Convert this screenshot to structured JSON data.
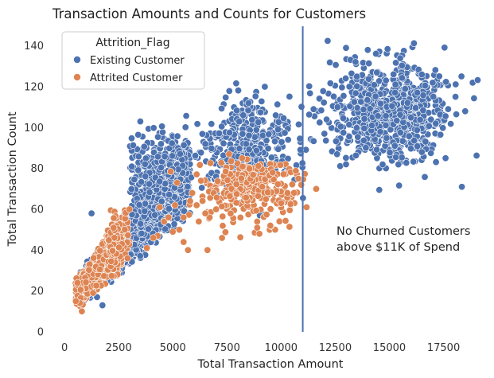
{
  "chart_data": {
    "type": "scatter",
    "title": "Transaction Amounts and Counts for Customers",
    "xlabel": "Total Transaction Amount",
    "ylabel": "Total Transaction Count",
    "xlim": [
      -500,
      19500
    ],
    "ylim": [
      0,
      150
    ],
    "xticks": [
      0,
      2500,
      5000,
      7500,
      10000,
      12500,
      15000,
      17500
    ],
    "yticks": [
      0,
      20,
      40,
      60,
      80,
      100,
      120,
      140
    ],
    "grid": false,
    "legend": {
      "title": "Attrition_Flag",
      "placement": "top-left"
    },
    "vline": {
      "x": 11000,
      "color": "#4c72b0"
    },
    "annotation": {
      "lines": [
        "No Churned Customers",
        "above $11K of Spend"
      ],
      "x": 12500,
      "y": 40
    },
    "series": [
      {
        "name": "Existing Customer",
        "color": "#4c72b0",
        "clusters": [
          {
            "kind": "band",
            "x_range": [
              700,
              5800
            ],
            "y_low_at_start": 12,
            "y_low_at_end": 55,
            "y_high_at_start": 30,
            "y_high_at_end": 100,
            "n": 1500
          },
          {
            "kind": "band",
            "x_range": [
              3000,
              5600
            ],
            "y_low_at_start": 50,
            "y_low_at_end": 62,
            "y_high_at_start": 100,
            "y_high_at_end": 106,
            "n": 250
          },
          {
            "kind": "ellipse",
            "center": [
              8500,
              90
            ],
            "spread": [
              1000,
              11
            ],
            "n": 420
          },
          {
            "kind": "ellipse",
            "center": [
              15000,
              108
            ],
            "spread": [
              1400,
              12
            ],
            "n": 750
          }
        ],
        "points": [
          [
            1250,
            58
          ],
          [
            3500,
            103
          ],
          [
            9250,
            120
          ],
          [
            13000,
            139
          ],
          [
            14000,
            138
          ],
          [
            15500,
            134
          ],
          [
            18500,
            108
          ],
          [
            11500,
            109
          ],
          [
            16500,
            88
          ],
          [
            13000,
            82
          ],
          [
            16500,
            126
          ],
          [
            17000,
            122
          ],
          [
            7000,
            76
          ],
          [
            6500,
            92
          ],
          [
            1500,
            17
          ],
          [
            1750,
            13
          ],
          [
            9750,
            106
          ],
          [
            8500,
            112
          ],
          [
            13500,
            125
          ],
          [
            12000,
            97
          ]
        ]
      },
      {
        "name": "Attrited Customer",
        "color": "#dd8452",
        "clusters": [
          {
            "kind": "band",
            "x_range": [
              500,
              2700
            ],
            "y_low_at_start": 10,
            "y_low_at_end": 28,
            "y_high_at_start": 26,
            "y_high_at_end": 60,
            "n": 500
          },
          {
            "kind": "band",
            "x_range": [
              2000,
              3000
            ],
            "y_low_at_start": 30,
            "y_low_at_end": 35,
            "y_high_at_start": 60,
            "y_high_at_end": 65,
            "n": 80
          },
          {
            "kind": "ellipse",
            "center": [
              8500,
              70
            ],
            "spread": [
              1050,
              8
            ],
            "n": 280
          }
        ],
        "points": [
          [
            4300,
            47
          ],
          [
            4600,
            54
          ],
          [
            5000,
            49
          ],
          [
            5300,
            50
          ],
          [
            5500,
            44
          ],
          [
            5800,
            64
          ],
          [
            6100,
            62
          ],
          [
            6300,
            74
          ],
          [
            6700,
            56
          ],
          [
            5700,
            40
          ],
          [
            6600,
            40
          ],
          [
            7000,
            60
          ],
          [
            4100,
            46
          ],
          [
            3800,
            41
          ],
          [
            4800,
            56
          ],
          [
            5100,
            62
          ],
          [
            5900,
            68
          ],
          [
            6200,
            54
          ],
          [
            10300,
            68
          ],
          [
            10800,
            75
          ],
          [
            9000,
            48
          ],
          [
            9500,
            52
          ],
          [
            8900,
            51
          ],
          [
            7600,
            87
          ],
          [
            8200,
            85
          ],
          [
            5200,
            73
          ],
          [
            10000,
            63
          ],
          [
            5500,
            56
          ],
          [
            4400,
            61
          ],
          [
            6500,
            58
          ],
          [
            600,
            24
          ],
          [
            800,
            10
          ],
          [
            3000,
            60
          ]
        ]
      }
    ]
  }
}
